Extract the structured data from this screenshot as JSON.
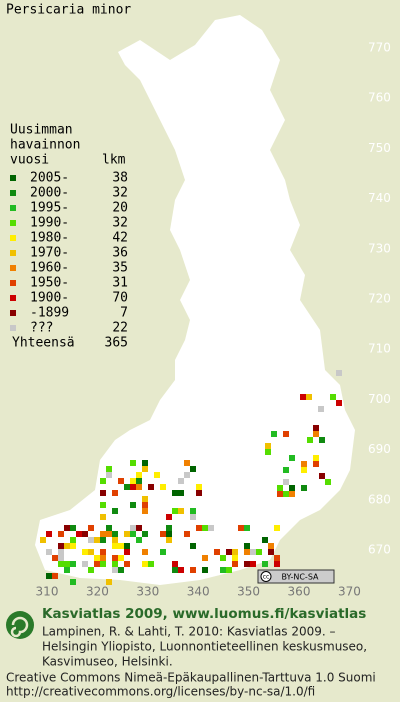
{
  "title": "Persicaria minor",
  "legend": {
    "header": [
      "Uusimman",
      "havainnon",
      "vuosi"
    ],
    "count_header": "lkm",
    "rows": [
      {
        "label": "2005-",
        "count": 38,
        "color": "#006400"
      },
      {
        "label": "2000-",
        "count": 32,
        "color": "#108a10"
      },
      {
        "label": "1995-",
        "count": 20,
        "color": "#22bb22"
      },
      {
        "label": "1990-",
        "count": 32,
        "color": "#55dd00"
      },
      {
        "label": "1980-",
        "count": 42,
        "color": "#ffee00"
      },
      {
        "label": "1970-",
        "count": 36,
        "color": "#f0c000"
      },
      {
        "label": "1960-",
        "count": 35,
        "color": "#f08000"
      },
      {
        "label": "1950-",
        "count": 31,
        "color": "#e04000"
      },
      {
        "label": "1900-",
        "count": 70,
        "color": "#cc0000"
      },
      {
        "label": "-1899",
        "count": 7,
        "color": "#880000"
      },
      {
        "label": "???",
        "count": 22,
        "color": "#c8c8c8"
      }
    ],
    "total_label": "Yhteensä",
    "total": 365
  },
  "grid_labels_y": [
    770,
    760,
    750,
    740,
    730,
    720,
    710,
    700,
    690,
    680,
    670
  ],
  "grid_labels_x": [
    310,
    320,
    330,
    340,
    350,
    360,
    370
  ],
  "license_badge": {
    "icon": "cc",
    "text": "BY-NC-SA"
  },
  "credits": {
    "heading": "Kasviatlas 2009, www.luomus.fi/kasviatlas",
    "citation": [
      "Lampinen, R. & Lahti, T. 2010: Kasviatlas 2009. –",
      "Helsingin Yliopisto, Luonnontieteellinen keskusmuseo,",
      "Kasvimuseo, Helsinki."
    ],
    "license": [
      "Creative Commons Nimeä-Epäkaupallinen-Tarttuva 1.0 Suomi",
      "http://creativecommons.org/licenses/by-nc-sa/1.0/fi"
    ]
  }
}
